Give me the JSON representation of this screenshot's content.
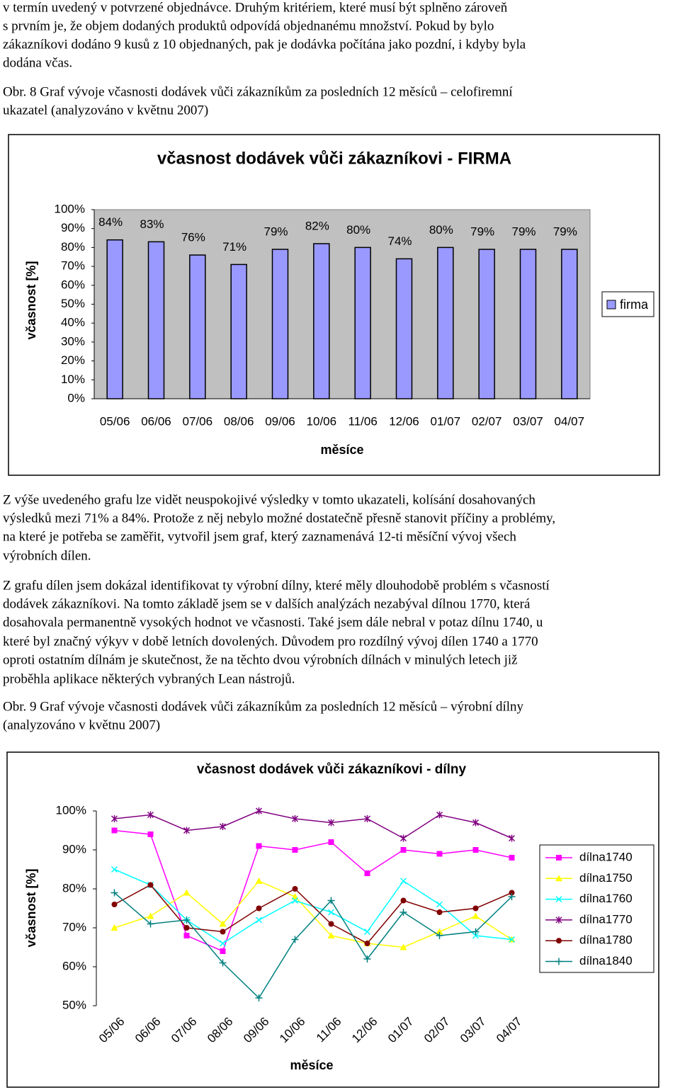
{
  "paragraphs": [
    [
      "v termín uvedený v potvrzené objednávce. Druhým kritériem, které musí být splněno zároveň",
      "s prvním je, že objem dodaných produktů odpovídá objednanému množství. Pokud by bylo",
      "zákazníkovi dodáno 9 kusů z 10 objednaných, pak je dodávka počítána jako pozdní, i kdyby byla",
      "dodána včas."
    ],
    [
      "Obr. 8 Graf vývoje včasnosti dodávek vůči zákazníkům za posledních 12 měsíců – celofiremní",
      "ukazatel (analyzováno v květnu 2007)"
    ],
    [
      "Z výše uvedeného grafu lze vidět neuspokojivé výsledky v tomto ukazateli, kolísání dosahovaných",
      "výsledků mezi 71% a 84%. Protože z něj nebylo možné dostatečně přesně stanovit příčiny a problémy,",
      "na které je potřeba se zaměřit, vytvořil jsem graf, který zaznamenává 12-ti měsíční vývoj všech",
      "výrobních dílen."
    ],
    [
      "Z grafu dílen jsem dokázal identifikovat ty výrobní dílny, které měly dlouhodobě problém s včasností",
      "dodávek zákazníkovi. Na tomto základě jsem se v dalších analýzách nezabýval dílnou 1770, která",
      "dosahovala permanentně vysokých hodnot ve včasnosti. Také jsem dále nebral v potaz dílnu 1740, u",
      "které byl značný výkyv v době letních dovolených. Důvodem pro rozdílný vývoj dílen 1740 a 1770",
      "oproti ostatním dílnám je skutečnost, že na těchto dvou výrobních dílnách v minulých letech již",
      "proběhla aplikace některých vybraných Lean nástrojů."
    ],
    [
      "Obr. 9 Graf vývoje včasnosti dodávek vůči zákazníkům za posledních 12 měsíců – výrobní dílny",
      "(analyzováno v květnu 2007)"
    ]
  ],
  "chart_data": [
    {
      "type": "bar",
      "title": "včasnost dodávek vůči zákazníkovi - FIRMA",
      "x_label": "měsíce",
      "y_label": "včasnost [%]",
      "categories": [
        "05/06",
        "06/06",
        "07/06",
        "08/06",
        "09/06",
        "10/06",
        "11/06",
        "12/06",
        "01/07",
        "02/07",
        "03/07",
        "04/07"
      ],
      "series": [
        {
          "name": "firma",
          "color": "#9999ff",
          "values": [
            84,
            83,
            76,
            71,
            79,
            82,
            80,
            74,
            80,
            79,
            79,
            79
          ],
          "value_labels": [
            "84%",
            "83%",
            "76%",
            "71%",
            "79%",
            "82%",
            "80%",
            "74%",
            "80%",
            "79%",
            "79%",
            "79%"
          ]
        }
      ],
      "ylim": [
        0,
        100
      ],
      "yticks": [
        {
          "value": 0,
          "label": "0%"
        },
        {
          "value": 10,
          "label": "10%"
        },
        {
          "value": 20,
          "label": "20%"
        },
        {
          "value": 30,
          "label": "30%"
        },
        {
          "value": 40,
          "label": "40%"
        },
        {
          "value": 50,
          "label": "50%"
        },
        {
          "value": 60,
          "label": "60%"
        },
        {
          "value": 70,
          "label": "70%"
        },
        {
          "value": 80,
          "label": "80%"
        },
        {
          "value": 90,
          "label": "90%"
        },
        {
          "value": 100,
          "label": "100%"
        }
      ],
      "legend": "right",
      "plot_background": "#c0c0c0"
    },
    {
      "type": "line",
      "title": "včasnost dodávek vůči zákazníkovi - dílny",
      "x_label": "měsíce",
      "y_label": "včasnost [%]",
      "categories": [
        "05/06",
        "06/06",
        "07/06",
        "08/06",
        "09/06",
        "10/06",
        "11/06",
        "12/06",
        "01/07",
        "02/07",
        "03/07",
        "04/07"
      ],
      "series": [
        {
          "name": "dílna1740",
          "color": "#ff00ff",
          "marker": "square",
          "values": [
            95,
            94,
            68,
            64,
            91,
            90,
            92,
            84,
            90,
            89,
            90,
            88
          ]
        },
        {
          "name": "dílna1750",
          "color": "#ffff00",
          "marker": "triangle",
          "values": [
            70,
            73,
            79,
            71,
            82,
            78,
            68,
            66,
            65,
            69,
            73,
            67
          ]
        },
        {
          "name": "dílna1760",
          "color": "#00ffff",
          "marker": "x",
          "values": [
            85,
            81,
            72,
            66,
            72,
            77,
            74,
            69,
            82,
            76,
            68,
            67
          ]
        },
        {
          "name": "dílna1770",
          "color": "#800080",
          "marker": "star",
          "values": [
            98,
            99,
            95,
            96,
            100,
            98,
            97,
            98,
            93,
            99,
            97,
            93
          ]
        },
        {
          "name": "dílna1780",
          "color": "#800000",
          "marker": "circle",
          "values": [
            76,
            81,
            70,
            69,
            75,
            80,
            71,
            66,
            77,
            74,
            75,
            79
          ]
        },
        {
          "name": "dílna1840",
          "color": "#008080",
          "marker": "plus",
          "values": [
            79,
            71,
            72,
            61,
            52,
            67,
            77,
            62,
            74,
            68,
            69,
            78
          ]
        }
      ],
      "ylim": [
        50,
        100
      ],
      "yticks": [
        {
          "value": 50,
          "label": "50%"
        },
        {
          "value": 60,
          "label": "60%"
        },
        {
          "value": 70,
          "label": "70%"
        },
        {
          "value": 80,
          "label": "80%"
        },
        {
          "value": 90,
          "label": "90%"
        },
        {
          "value": 100,
          "label": "100%"
        }
      ],
      "legend": "right"
    }
  ]
}
